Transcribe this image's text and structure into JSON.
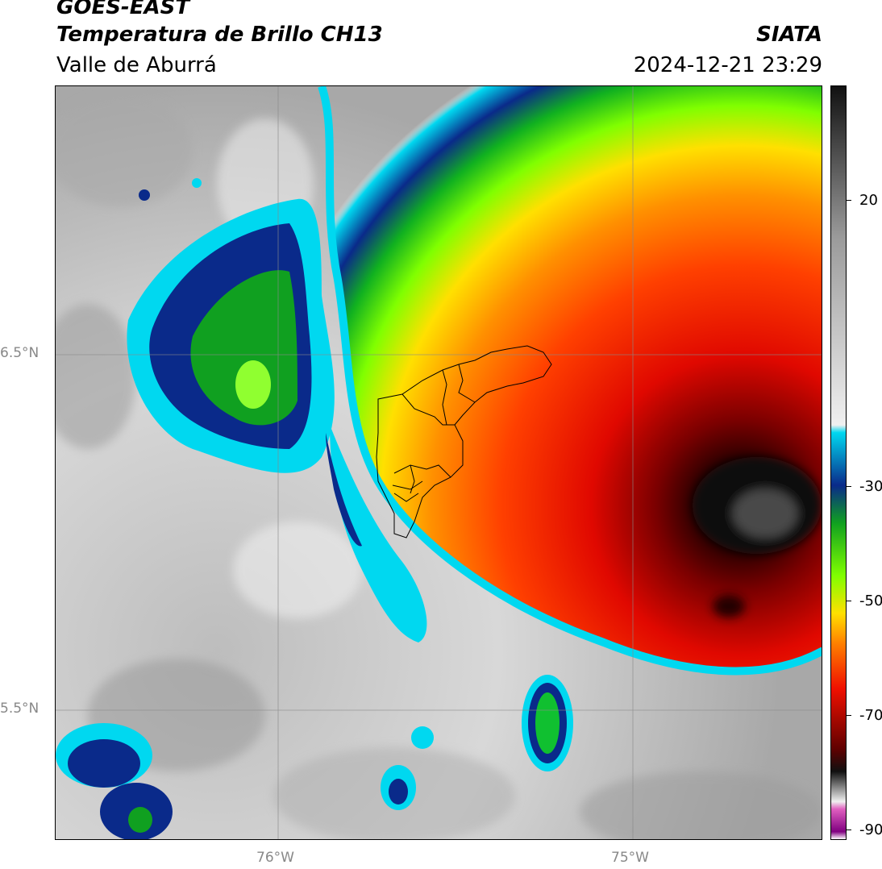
{
  "title": {
    "satellite": "GOES-EAST",
    "product": "Temperatura de Brillo CH13",
    "region": "Valle de Aburrá",
    "org": "SIATA",
    "timestamp": "2024-12-21 23:29"
  },
  "axes": {
    "lat_labels": [
      "6.5°N",
      "5.5°N"
    ],
    "lon_labels": [
      "76°W",
      "75°W"
    ]
  },
  "colorbar": {
    "labels": [
      "20",
      "-30",
      "-50",
      "-70",
      "-90"
    ],
    "colors": {
      "warm_top": "#111111",
      "gray_mid": "#9a9a9a",
      "light": "#f0f0f0",
      "cyan": "#00d8f0",
      "blue": "#0a2a8a",
      "green": "#10a020",
      "lime": "#80ff00",
      "yellow": "#ffe000",
      "orange": "#ff8000",
      "red": "#f01000",
      "dark_red": "#600000",
      "black": "#101010",
      "pink": "#e060c0",
      "purple": "#800080"
    }
  },
  "map": {
    "features": [
      "cloud-top-temperature-field",
      "valle-de-aburra-municipal-boundaries",
      "graticule"
    ]
  }
}
